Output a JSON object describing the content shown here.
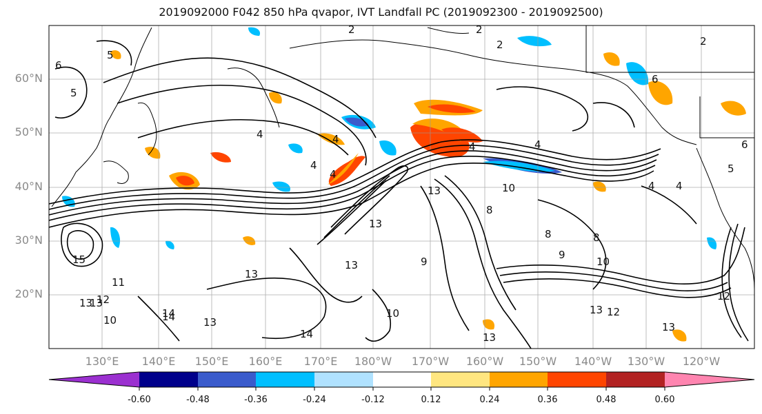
{
  "title": "2019092000 F042 850 hPa qvapor, IVT Landfall PC (2019092300 - 2019092500)",
  "map": {
    "lat_labels": [
      "60°N",
      "50°N",
      "40°N",
      "30°N",
      "20°N"
    ],
    "lon_labels": [
      "130°E",
      "140°E",
      "150°E",
      "160°E",
      "170°E",
      "180°W",
      "170°W",
      "160°W",
      "150°W",
      "140°W",
      "130°W",
      "120°W"
    ],
    "contour_labels": [
      "2",
      "2",
      "2",
      "2",
      "5",
      "5",
      "6",
      "6",
      "4",
      "4",
      "4",
      "4",
      "4",
      "4",
      "4",
      "4",
      "5",
      "6",
      "10",
      "13",
      "13",
      "13",
      "13",
      "13",
      "13",
      "13",
      "14",
      "14",
      "12",
      "11",
      "10",
      "8",
      "8",
      "8",
      "9",
      "9",
      "10",
      "15",
      "13",
      "12",
      "10",
      "13",
      "14",
      "13",
      "12"
    ]
  },
  "colorbar": {
    "ticks": [
      "-0.60",
      "-0.48",
      "-0.36",
      "-0.24",
      "-0.12",
      "0.12",
      "0.24",
      "0.36",
      "0.48",
      "0.60"
    ],
    "colors": [
      "#9b30d0",
      "#00008b",
      "#3a5bcc",
      "#00bfff",
      "#b0e2ff",
      "#ffffff",
      "#ffe680",
      "#ffa500",
      "#ff4500",
      "#b22222",
      "#ff85b0"
    ]
  },
  "colors": {
    "positive_high": "#ff4500",
    "positive_mid": "#ffa500",
    "positive_low": "#ffe680",
    "negative_low": "#b0e2ff",
    "negative_mid": "#00bfff",
    "negative_high": "#3a5bcc",
    "negative_max": "#00008b"
  }
}
